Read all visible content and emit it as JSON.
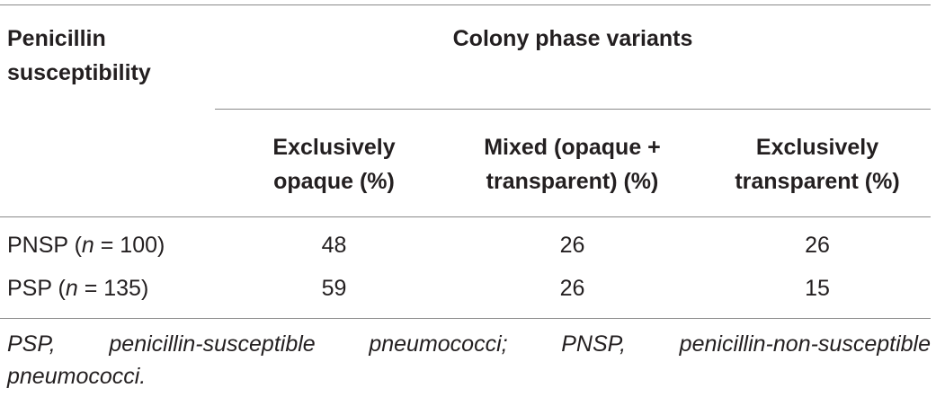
{
  "table": {
    "row_header_label": [
      "Penicillin",
      "susceptibility"
    ],
    "group_header": "Colony phase variants",
    "columns": [
      [
        "Exclusively",
        "opaque (%)"
      ],
      [
        "Mixed (opaque +",
        "transparent) (%)"
      ],
      [
        "Exclusively",
        "transparent (%)"
      ]
    ],
    "rows": [
      {
        "label": {
          "prefix": "PNSP (",
          "var": "n",
          "suffix": " = 100)"
        },
        "values": [
          "48",
          "26",
          "26"
        ]
      },
      {
        "label": {
          "prefix": "PSP (",
          "var": "n",
          "suffix": " = 135)"
        },
        "values": [
          "59",
          "26",
          "15"
        ]
      }
    ]
  },
  "footnote": {
    "line1_words": [
      "PSP,",
      "penicillin-susceptible",
      "pneumococci;",
      "PNSP,",
      "penicillin-non-susceptible"
    ],
    "line2": "pneumococci."
  }
}
